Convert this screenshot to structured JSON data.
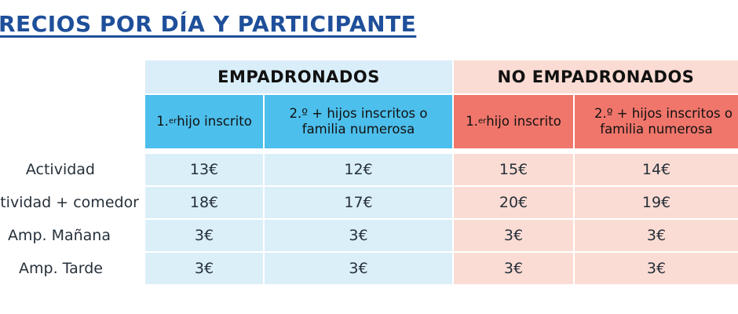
{
  "title": "RECIOS POR DÍA Y PARTICIPANTE",
  "groups": {
    "empadronados": "EMPADRONADOS",
    "no_empadronados": "NO  EMPADRONADOS"
  },
  "subheaders": {
    "first_child_sup": "er",
    "first_child_pre": "1.",
    "first_child_post": " hijo inscrito",
    "second_line1": "2.º + hijos inscritos o",
    "second_line2": "familia numerosa"
  },
  "rows": [
    {
      "label": "Actividad",
      "values": [
        "13€",
        "12€",
        "15€",
        "14€"
      ]
    },
    {
      "label": "tividad + comedor",
      "values": [
        "18€",
        "17€",
        "20€",
        "19€"
      ]
    },
    {
      "label": "Amp. Mañana",
      "values": [
        "3€",
        "3€",
        "3€",
        "3€"
      ]
    },
    {
      "label": "Amp. Tarde",
      "values": [
        "3€",
        "3€",
        "3€",
        "3€"
      ]
    }
  ],
  "colors": {
    "header_blue": "#4dbfec",
    "light_blue": "#d9eef9",
    "header_red": "#f0766b",
    "light_red": "#fbdcd4",
    "title_blue": "#1f4f9a"
  }
}
